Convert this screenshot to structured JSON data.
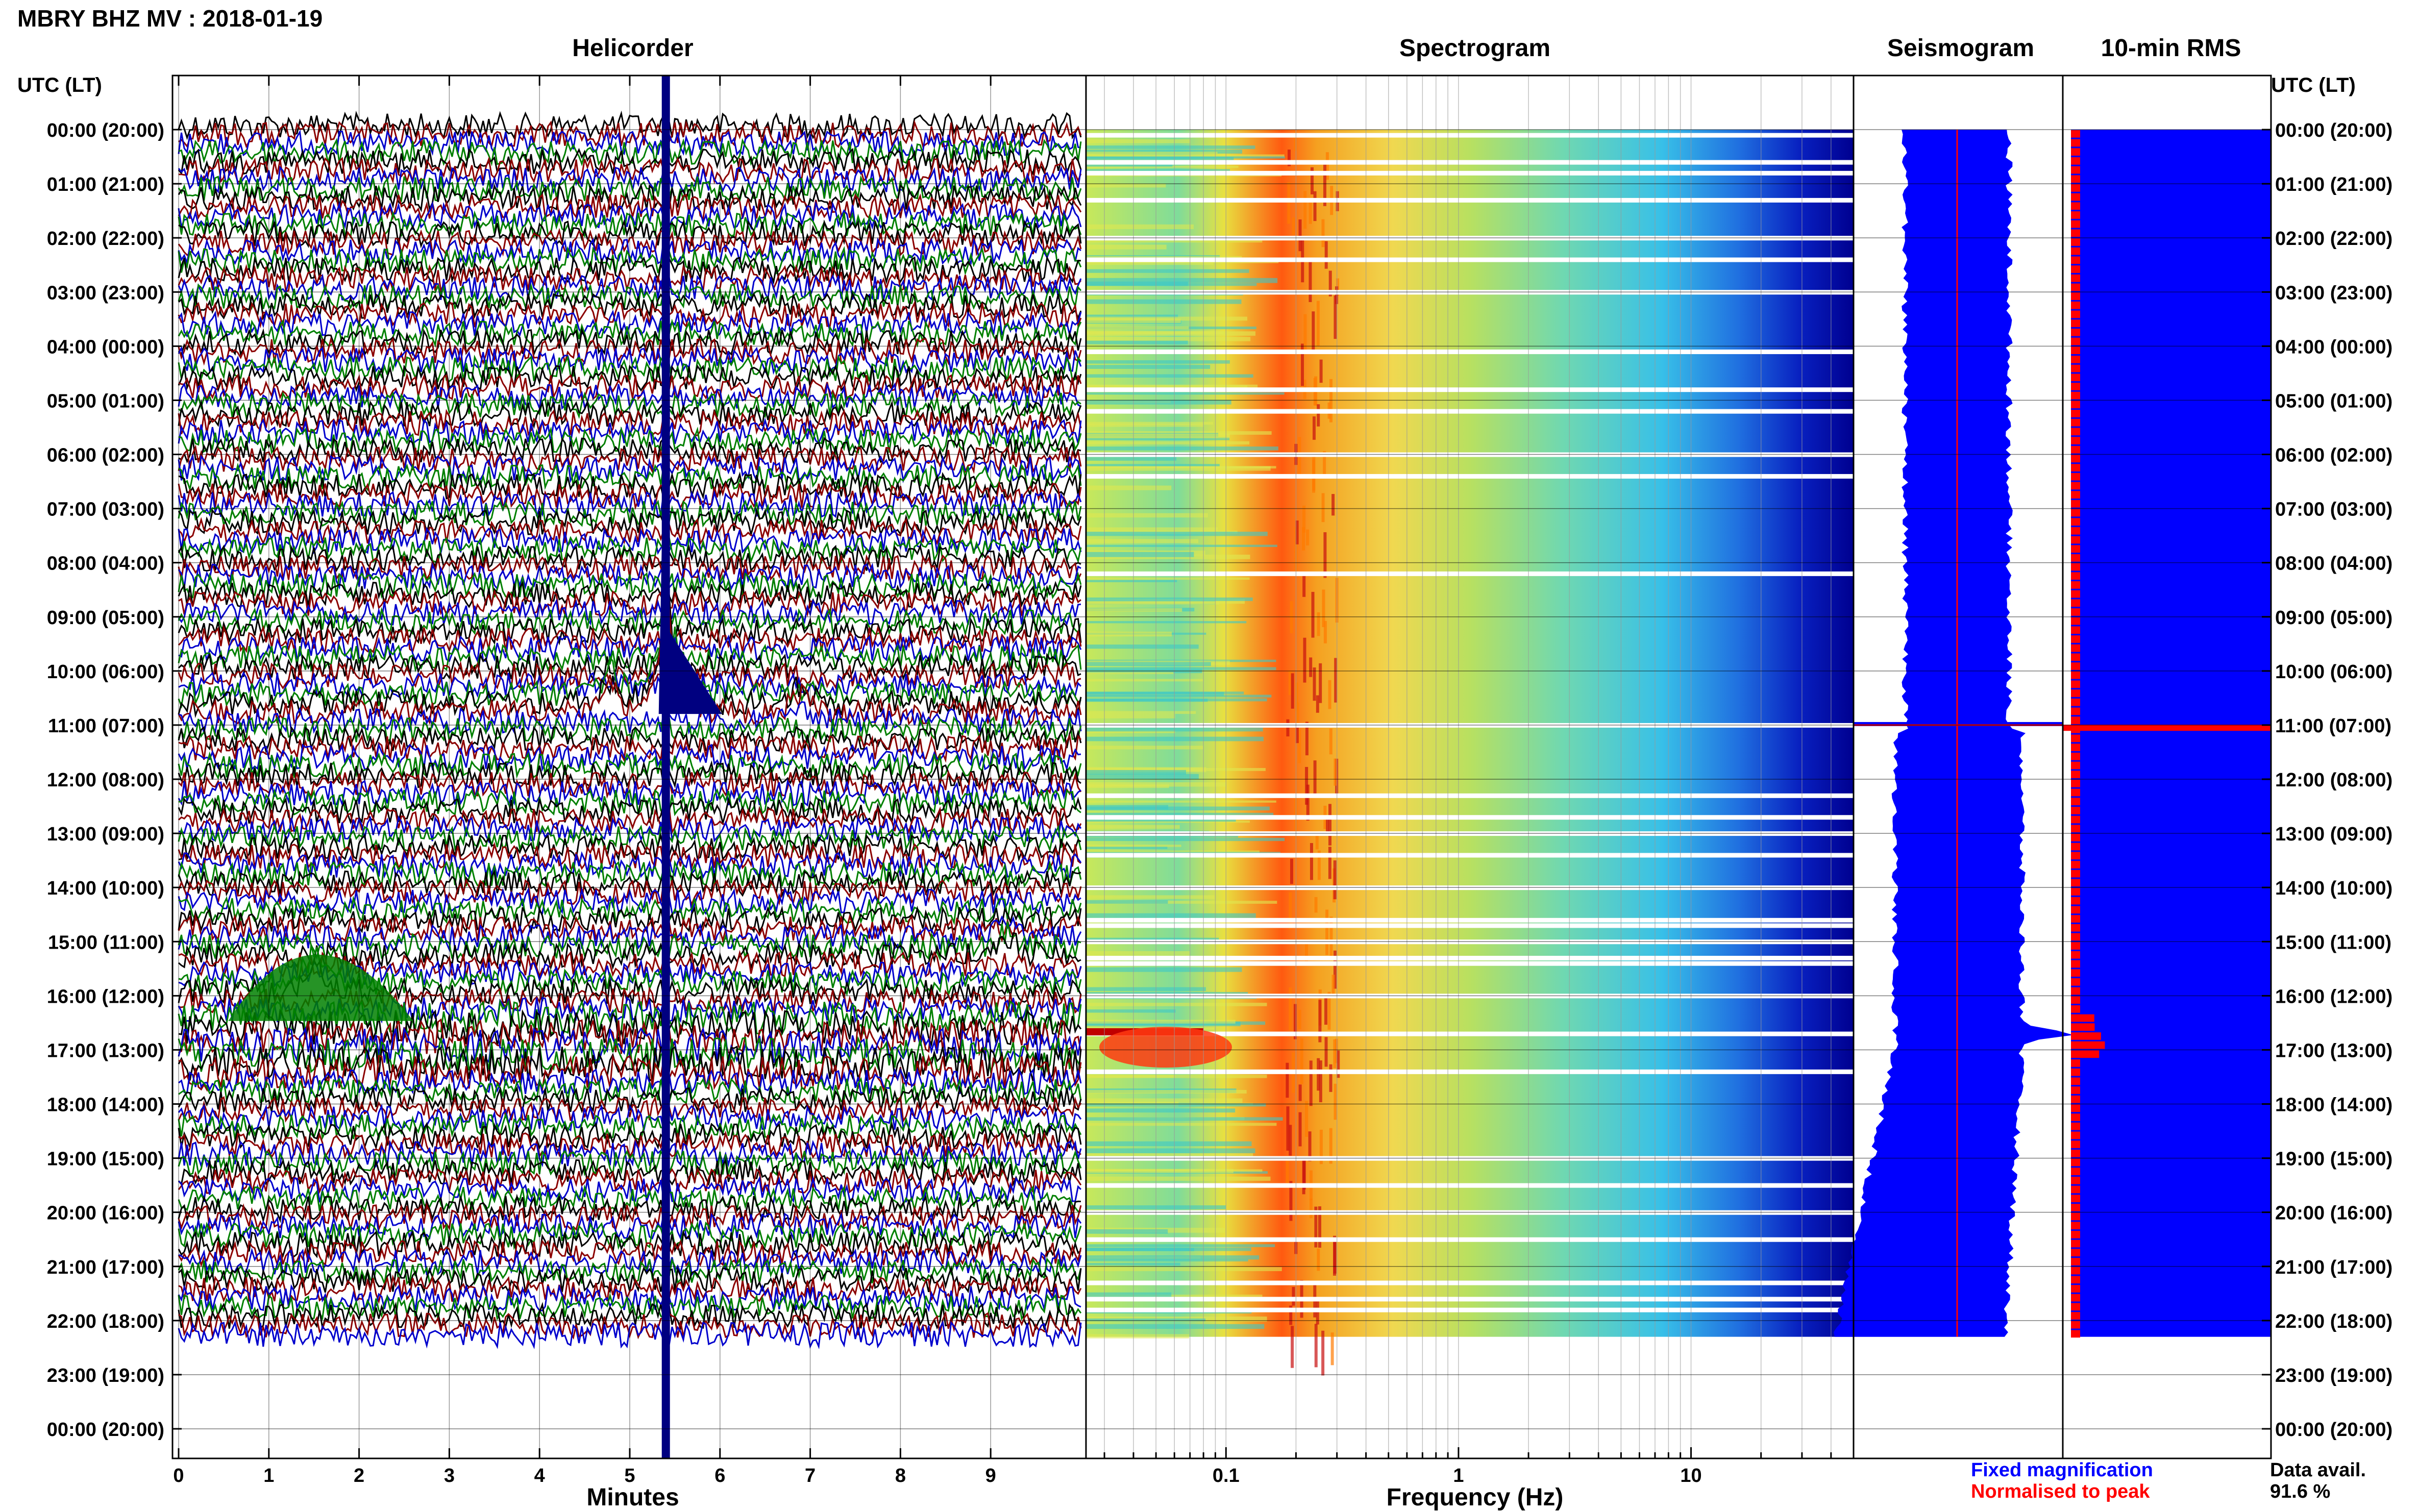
{
  "page_title": "MBRY BHZ MV : 2018-01-19",
  "time_axis_label": "UTC (LT)",
  "panel_titles": {
    "helicorder": "Helicorder",
    "spectrogram": "Spectrogram",
    "seismogram": "Seismogram",
    "rms": "10-min RMS"
  },
  "legend": {
    "fixed": "Fixed magnification",
    "normalised": "Normalised to peak",
    "fixed_color": "#0000ff",
    "normalised_color": "#ff0000"
  },
  "data_availability": {
    "label": "Data avail.",
    "value": "91.6 %"
  },
  "chart_data": [
    {
      "type": "line",
      "panel": "helicorder",
      "xlabel": "Minutes",
      "x_ticks": [
        0,
        1,
        2,
        3,
        4,
        5,
        6,
        7,
        8,
        9
      ],
      "xlim": [
        0,
        10
      ],
      "y_ticks": [
        "00:00 (20:00)",
        "01:00 (21:00)",
        "02:00 (22:00)",
        "03:00 (23:00)",
        "04:00 (00:00)",
        "05:00 (01:00)",
        "06:00 (02:00)",
        "07:00 (03:00)",
        "08:00 (04:00)",
        "09:00 (05:00)",
        "10:00 (06:00)",
        "11:00 (07:00)",
        "12:00 (08:00)",
        "13:00 (09:00)",
        "14:00 (10:00)",
        "15:00 (11:00)",
        "16:00 (12:00)",
        "17:00 (13:00)",
        "18:00 (14:00)",
        "19:00 (15:00)",
        "20:00 (16:00)",
        "21:00 (17:00)",
        "22:00 (18:00)",
        "23:00 (19:00)",
        "00:00 (20:00)"
      ],
      "ylim_hours": [
        0,
        24
      ],
      "data_end_hour": 22.3,
      "trace_colors": [
        "#000000",
        "#8b0000",
        "#0000cd",
        "#008000"
      ],
      "events": [
        {
          "hour": 10.7,
          "minute": 5.4,
          "amplitude": 6.0
        },
        {
          "hour": 10.7,
          "minute": 4.8,
          "amplitude": 1.5
        },
        {
          "hour": 10.8,
          "minute": 6.9,
          "amplitude": 1.2
        },
        {
          "hour": 15.9,
          "minute": 1.5,
          "amplitude": 1.6
        },
        {
          "hour": 15.2,
          "minute": 9.2,
          "amplitude": 1.0
        }
      ],
      "marker_line": {
        "minute": 5.4,
        "color": "#000080"
      }
    },
    {
      "type": "heatmap",
      "panel": "spectrogram",
      "xlabel": "Frequency (Hz)",
      "x_scale": "log",
      "xlim": [
        0.025,
        50
      ],
      "x_ticks": [
        {
          "value": 0.1,
          "label": "0.1"
        },
        {
          "value": 1,
          "label": "1"
        },
        {
          "value": 10,
          "label": "10"
        }
      ],
      "ylim_hours": [
        0,
        24
      ],
      "data_end_hour": 22.3,
      "peak_band_hz": [
        0.18,
        0.3
      ],
      "gaps_hours": [
        0.1,
        0.6,
        0.8,
        1.3,
        2.0,
        2.4,
        3.0,
        4.1,
        4.8,
        5.2,
        6.0,
        6.4,
        8.2,
        11.0,
        12.3,
        12.7,
        13.0,
        13.4,
        14.0,
        14.6,
        14.7,
        15.0,
        15.3,
        15.4,
        16.0,
        16.7,
        17.4,
        19.0,
        19.5,
        20.0,
        20.5,
        21.3,
        21.6,
        21.8
      ]
    },
    {
      "type": "area",
      "panel": "seismogram",
      "series": [
        {
          "name": "Fixed magnification",
          "color": "#0000ff"
        },
        {
          "name": "Normalised to peak",
          "color": "#ff0000"
        }
      ],
      "ylim_hours": [
        0,
        24
      ],
      "data_end_hour": 22.3,
      "peak_hour": 16.7
    },
    {
      "type": "bar",
      "panel": "rms",
      "bar_fixed_color": "#0000ff",
      "bar_normalised_color": "#ff0000",
      "ylim_hours": [
        0,
        24
      ],
      "data_end_hour": 22.3,
      "spike_hour": 11.05,
      "rms_hours": [
        16.3,
        16.4,
        16.5,
        16.6,
        16.7,
        16.8,
        16.9,
        17.0
      ]
    }
  ]
}
